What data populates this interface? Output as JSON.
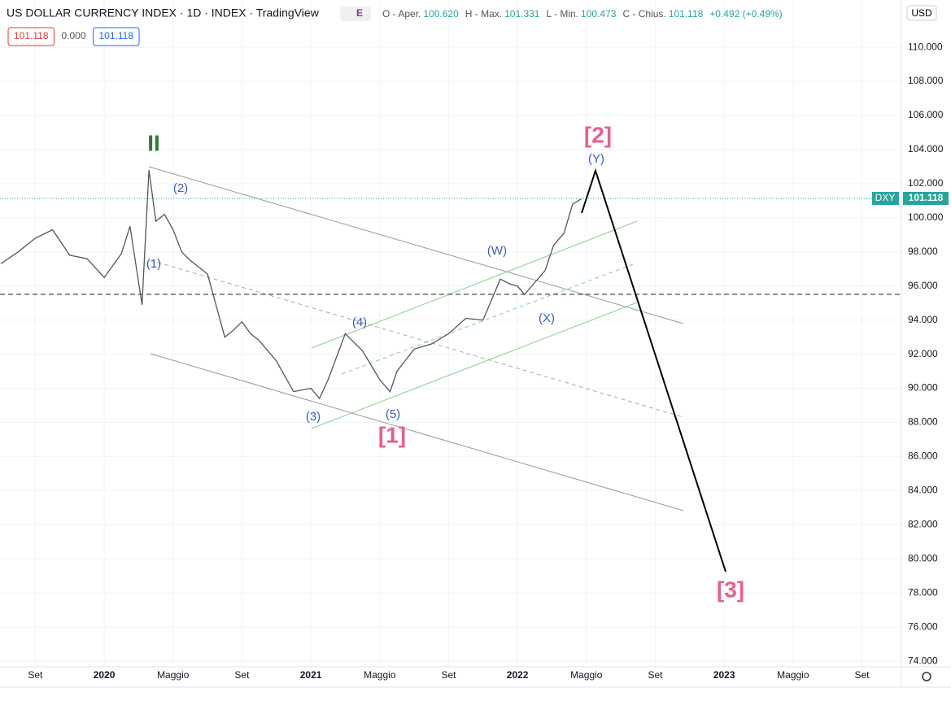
{
  "header": {
    "title": "US DOLLAR CURRENCY INDEX · 1D · INDEX · TradingView",
    "badge": "E",
    "ohlc": [
      {
        "label": "O - Aper.",
        "value": "100.620"
      },
      {
        "label": "H - Max.",
        "value": "101.331"
      },
      {
        "label": "L - Min.",
        "value": "100.473"
      },
      {
        "label": "C - Chius.",
        "value": "101.118"
      }
    ],
    "change": "+0.492 (+0.49%)",
    "chips": [
      "101.118",
      "0.000",
      "101.118"
    ],
    "currency": "USD"
  },
  "chart_data": {
    "type": "line",
    "symbol": "DXY",
    "last_price_label": "101.118",
    "series": [
      {
        "name": "DXY",
        "color": "#555555",
        "x": [
          -6,
          -5,
          -4,
          -3,
          -2,
          -1,
          0,
          1,
          1.5,
          2.2,
          2.6,
          3,
          3.5,
          4,
          4.5,
          5,
          6,
          7,
          7.5,
          8,
          8.5,
          9,
          10,
          11,
          12,
          12.5,
          13,
          14,
          15,
          16,
          16.6,
          17,
          18,
          19,
          20,
          21,
          22,
          23,
          23.6,
          24,
          24.4,
          25,
          25.6,
          26.1,
          26.7,
          27.2,
          27.7
        ],
        "values": [
          97.3,
          98,
          98.8,
          99.3,
          97.8,
          97.6,
          96.5,
          97.9,
          99.5,
          94.9,
          102.8,
          99.8,
          100.2,
          99.3,
          98,
          97.5,
          96.7,
          93,
          93.4,
          93.9,
          93.2,
          92.8,
          91.6,
          89.8,
          90,
          89.4,
          90.5,
          93.2,
          92.2,
          90.5,
          89.8,
          91,
          92.3,
          92.6,
          93.2,
          94.1,
          94,
          96.4,
          96.1,
          96,
          95.5,
          96.2,
          96.9,
          98.4,
          99.1,
          100.8,
          101.1
        ]
      }
    ],
    "xlim": [
      -6.05,
      46.29
    ],
    "ylim": [
      73.67,
      112.77
    ],
    "xticks": [
      {
        "value": -4,
        "label": "Set"
      },
      {
        "value": 0,
        "label": "2020"
      },
      {
        "value": 4,
        "label": "Maggio"
      },
      {
        "value": 8,
        "label": "Set"
      },
      {
        "value": 12,
        "label": "2021"
      },
      {
        "value": 16,
        "label": "Maggio"
      },
      {
        "value": 20,
        "label": "Set"
      },
      {
        "value": 24,
        "label": "2022"
      },
      {
        "value": 28,
        "label": "Maggio"
      },
      {
        "value": 32,
        "label": "Set"
      },
      {
        "value": 36,
        "label": "2023"
      },
      {
        "value": 40,
        "label": "Maggio"
      },
      {
        "value": 44,
        "label": "Set"
      }
    ],
    "yticks": [
      {
        "value": 74,
        "label": "74.000"
      },
      {
        "value": 76,
        "label": "76.000"
      },
      {
        "value": 78,
        "label": "78.000"
      },
      {
        "value": 80,
        "label": "80.000"
      },
      {
        "value": 82,
        "label": "82.000"
      },
      {
        "value": 84,
        "label": "84.000"
      },
      {
        "value": 86,
        "label": "86.000"
      },
      {
        "value": 88,
        "label": "88.000"
      },
      {
        "value": 90,
        "label": "90.000"
      },
      {
        "value": 92,
        "label": "92.000"
      },
      {
        "value": 94,
        "label": "94.000"
      },
      {
        "value": 96,
        "label": "96.000"
      },
      {
        "value": 98,
        "label": "98.000"
      },
      {
        "value": 100,
        "label": "100.000"
      },
      {
        "value": 102,
        "label": "102.000"
      },
      {
        "value": 104,
        "label": "104.000"
      },
      {
        "value": 106,
        "label": "106.000"
      },
      {
        "value": 108,
        "label": "108.000"
      },
      {
        "value": 110,
        "label": "110.000"
      }
    ],
    "grid": true,
    "annotations": [
      "II",
      "(2)",
      "(1)",
      "(3)",
      "(4)",
      "(5)",
      "[1]",
      "(W)",
      "(X)",
      "[2]",
      "(Y)",
      "[3]"
    ]
  }
}
